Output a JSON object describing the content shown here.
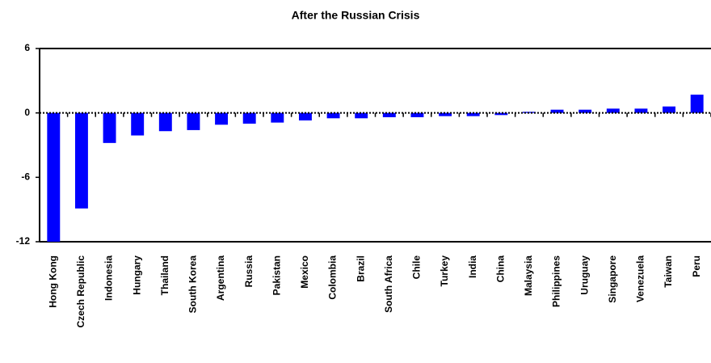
{
  "chart_data": {
    "type": "bar",
    "title": "After the Russian Crisis",
    "categories": [
      "Hong Kong",
      "Czech Republic",
      "Indonesia",
      "Hungary",
      "Thailand",
      "South Korea",
      "Argentina",
      "Russia",
      "Pakistan",
      "Mexico",
      "Colombia",
      "Brazil",
      "South Africa",
      "Chile",
      "Turkey",
      "India",
      "China",
      "Malaysia",
      "Philippines",
      "Uruguay",
      "Singapore",
      "Venezuela",
      "Taiwan",
      "Peru"
    ],
    "values": [
      -12,
      -8.9,
      -2.8,
      -2.1,
      -1.7,
      -1.6,
      -1.1,
      -1.0,
      -0.9,
      -0.7,
      -0.5,
      -0.5,
      -0.4,
      -0.4,
      -0.3,
      -0.3,
      -0.2,
      0.1,
      0.3,
      0.3,
      0.4,
      0.4,
      0.6,
      1.7
    ],
    "color": "#0000ff",
    "ylim": [
      -12,
      6
    ],
    "yticks": [
      -12,
      -6,
      0,
      6
    ],
    "grid": false
  }
}
